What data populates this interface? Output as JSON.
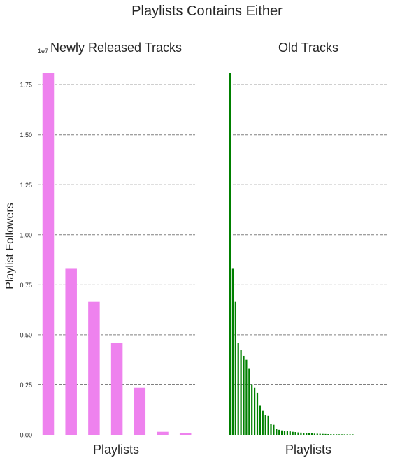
{
  "figure": {
    "suptitle": "Playlists Contains Either",
    "ylabel": "Playlist Followers",
    "offset_text": "1e7"
  },
  "chart_data": [
    {
      "type": "bar",
      "title": "Newly Released Tracks",
      "xlabel": "Playlists",
      "ylabel": "Playlist Followers",
      "ylim": [
        0,
        18100000
      ],
      "yticks": [
        0,
        2500000,
        5000000,
        7500000,
        10000000,
        12500000,
        15000000,
        17500000
      ],
      "ytick_labels": [
        "0.00",
        "0.25",
        "0.50",
        "0.75",
        "1.00",
        "1.25",
        "1.50",
        "1.75"
      ],
      "grid": "y-dashed",
      "color": "#ee82ee",
      "values": [
        18100000,
        8300000,
        6650000,
        4600000,
        2350000,
        150000,
        80000
      ]
    },
    {
      "type": "bar",
      "title": "Old Tracks",
      "xlabel": "Playlists",
      "ylim": [
        0,
        18100000
      ],
      "yticks": [
        0,
        2500000,
        5000000,
        7500000,
        10000000,
        12500000,
        15000000,
        17500000
      ],
      "grid": "y-dashed",
      "color": "#008000",
      "values": [
        18100000,
        8300000,
        6650000,
        4600000,
        4250000,
        3950000,
        3750000,
        3300000,
        2500000,
        2350000,
        2100000,
        1450000,
        1200000,
        1000000,
        950000,
        550000,
        500000,
        280000,
        250000,
        220000,
        200000,
        180000,
        170000,
        150000,
        140000,
        120000,
        110000,
        100000,
        90000,
        80000,
        70000,
        60000,
        55000,
        50000,
        45000,
        40000,
        35000,
        30000,
        28000,
        25000,
        22000,
        20000,
        18000,
        16000,
        14000,
        12000
      ]
    }
  ]
}
